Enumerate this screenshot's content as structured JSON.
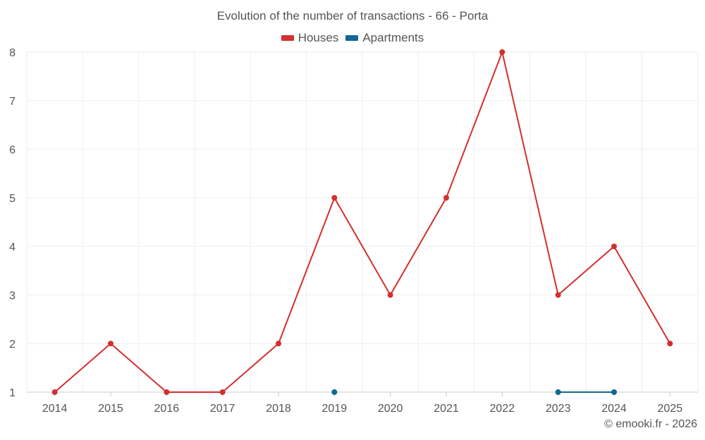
{
  "chart_data": {
    "type": "line",
    "title": "Evolution of the number of transactions - 66 - Porta",
    "xlabel": "",
    "ylabel": "",
    "x": [
      2014,
      2015,
      2016,
      2017,
      2018,
      2019,
      2020,
      2021,
      2022,
      2023,
      2024,
      2025
    ],
    "ylim": [
      1,
      8
    ],
    "yticks": [
      1,
      2,
      3,
      4,
      5,
      6,
      7,
      8
    ],
    "grid": true,
    "legend_position": "top-center",
    "series": [
      {
        "name": "Houses",
        "color": "#d32f2f",
        "values": [
          1,
          2,
          1,
          1,
          2,
          5,
          3,
          5,
          8,
          3,
          4,
          2
        ]
      },
      {
        "name": "Apartments",
        "color": "#0f6896",
        "values": [
          null,
          null,
          null,
          null,
          null,
          1,
          null,
          null,
          null,
          1,
          1,
          null
        ]
      }
    ]
  },
  "credit": "© emooki.fr - 2026"
}
